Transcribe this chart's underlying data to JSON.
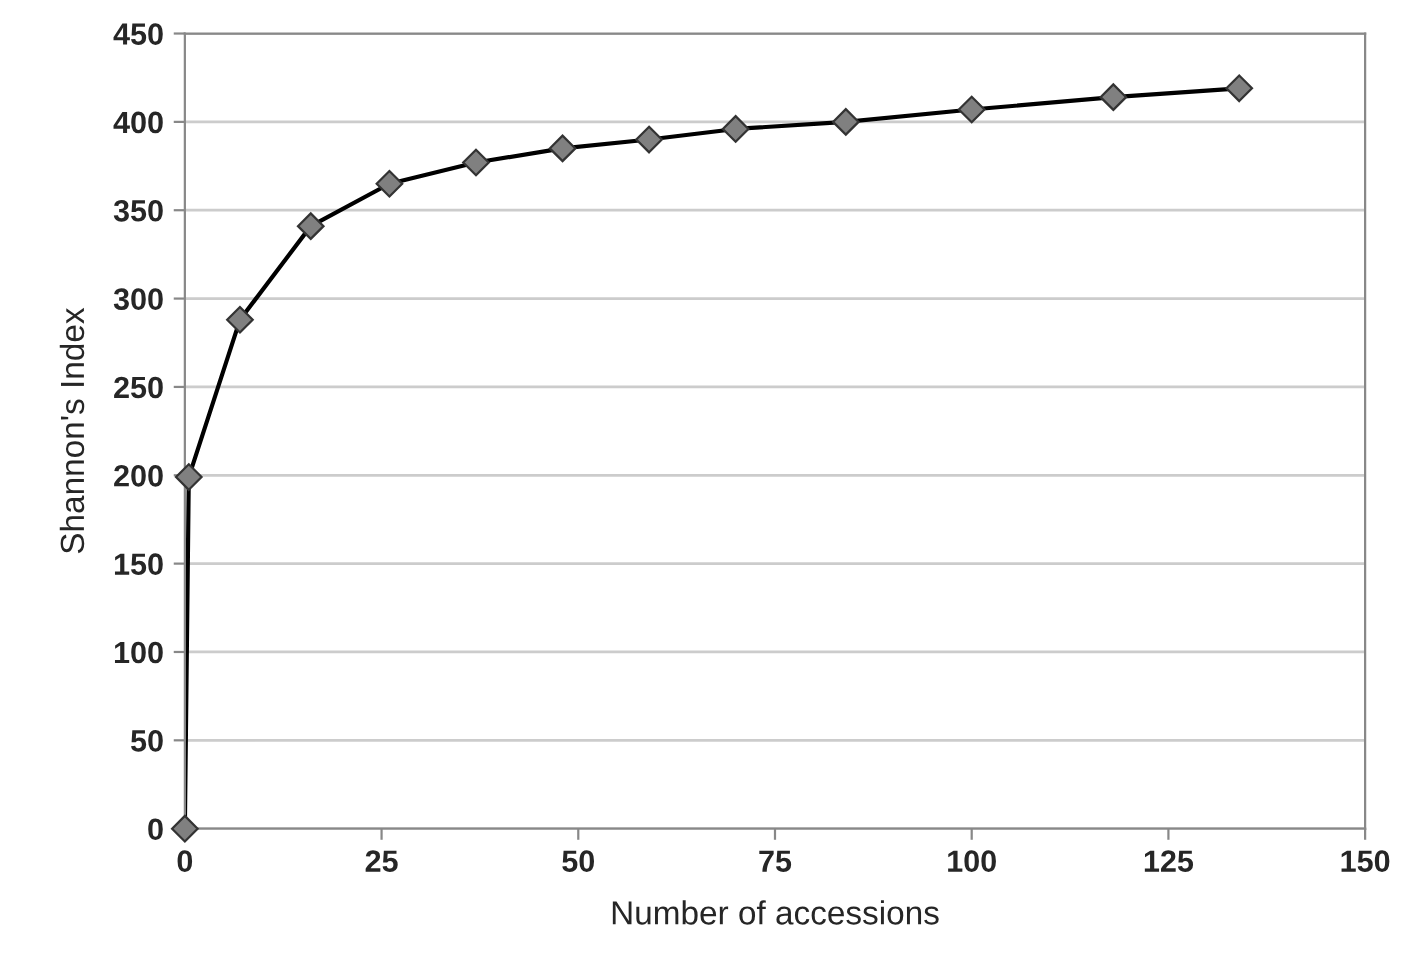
{
  "chart_data": {
    "type": "line",
    "xlabel": "Number of accessions",
    "ylabel": "Shannon's Index",
    "x": [
      0,
      0.5,
      7,
      16,
      26,
      37,
      48,
      59,
      70,
      84,
      100,
      118,
      134
    ],
    "series": [
      {
        "color": "#808080",
        "values": [
          0,
          199,
          288,
          341,
          365,
          377,
          385,
          390,
          396,
          400,
          407,
          414,
          419
        ]
      }
    ],
    "xlim": [
      0,
      150
    ],
    "xticks": [
      0,
      25,
      50,
      75,
      100,
      125,
      150
    ],
    "ylim": [
      0,
      450
    ],
    "yticks": [
      0,
      50,
      100,
      150,
      200,
      250,
      300,
      350,
      400,
      450
    ],
    "grid": "y",
    "marker": "diamond",
    "line_style": "solid"
  }
}
